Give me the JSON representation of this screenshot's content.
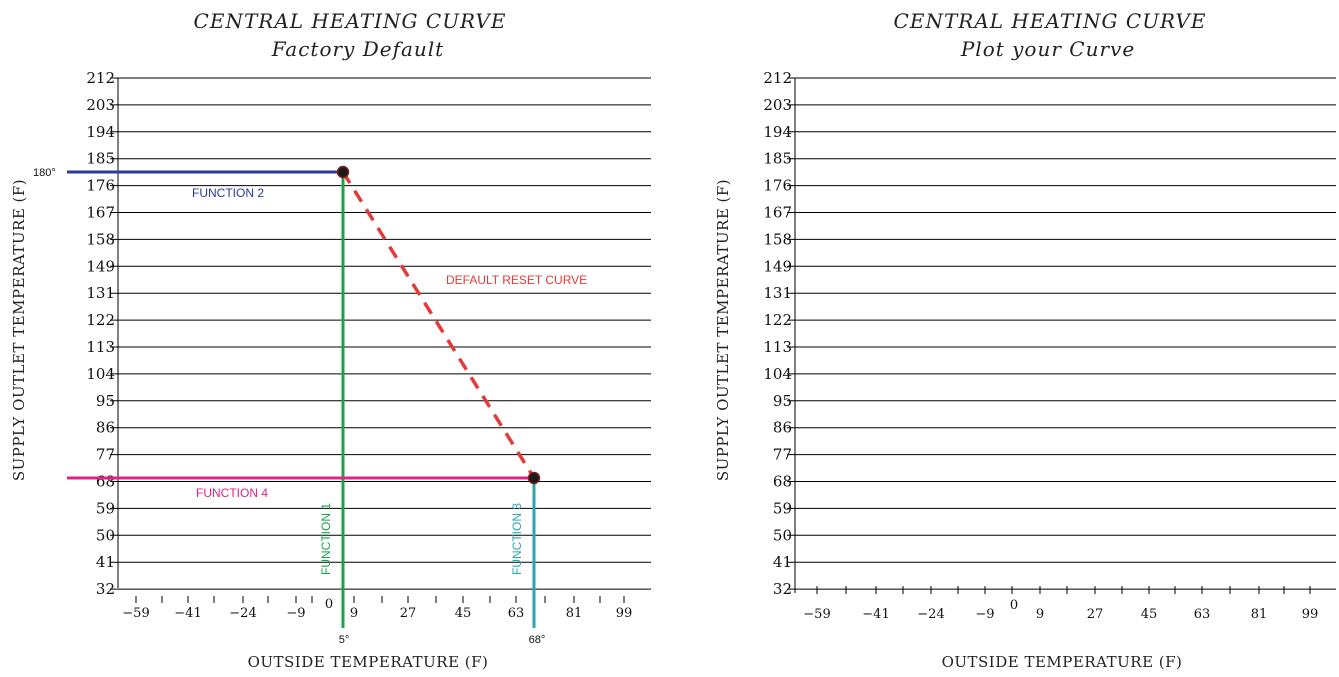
{
  "chart_data": [
    {
      "type": "line",
      "title": "CENTRAL HEATING CURVE",
      "subtitle": "Factory Default",
      "xlabel": "OUTSIDE TEMPERATURE (F)",
      "ylabel": "SUPPLY OUTLET TEMPERATURE (F)",
      "y_ticks": [
        "212",
        "203",
        "194",
        "185",
        "176",
        "167",
        "158",
        "149",
        "131",
        "122",
        "113",
        "104",
        "95",
        "86",
        "77",
        "68",
        "59",
        "50",
        "41",
        "32"
      ],
      "x_ticks": [
        "−59",
        "−41",
        "−24",
        "−9",
        "0",
        "9",
        "27",
        "45",
        "63",
        "81",
        "99"
      ],
      "grid": true,
      "series": [
        {
          "name": "FUNCTION 1",
          "color": "#1aa34a",
          "style": "solid",
          "x": [
            5,
            5
          ],
          "y": [
            180,
            26
          ]
        },
        {
          "name": "FUNCTION 2",
          "color": "#2b3a9b",
          "style": "solid",
          "x": [
            -64,
            5
          ],
          "y": [
            180,
            180
          ]
        },
        {
          "name": "FUNCTION 3",
          "color": "#2aa6b2",
          "style": "solid",
          "x": [
            68,
            68
          ],
          "y": [
            68,
            26
          ]
        },
        {
          "name": "FUNCTION 4",
          "color": "#e0218a",
          "style": "solid",
          "x": [
            -64,
            68
          ],
          "y": [
            68,
            68
          ]
        },
        {
          "name": "DEFAULT RESET CURVE",
          "color": "#e23b3b",
          "style": "dashed",
          "x": [
            5,
            68
          ],
          "y": [
            180,
            68
          ]
        }
      ],
      "points": [
        {
          "x": 5,
          "y": 180
        },
        {
          "x": 68,
          "y": 68
        }
      ],
      "annotations": {
        "y_marker": "180°",
        "x_marker_1": "5°",
        "x_marker_2": "68°"
      }
    },
    {
      "type": "line",
      "title": "CENTRAL HEATING CURVE",
      "subtitle": "Plot your Curve",
      "xlabel": "OUTSIDE TEMPERATURE (F)",
      "ylabel": "SUPPLY OUTLET TEMPERATURE (F)",
      "y_ticks": [
        "212",
        "203",
        "194",
        "185",
        "176",
        "167",
        "158",
        "149",
        "131",
        "122",
        "113",
        "104",
        "95",
        "86",
        "77",
        "68",
        "59",
        "50",
        "41",
        "32"
      ],
      "x_ticks": [
        "−59",
        "−41",
        "−24",
        "−9",
        "0",
        "9",
        "27",
        "45",
        "63",
        "81",
        "99"
      ],
      "grid": true,
      "series": []
    }
  ]
}
